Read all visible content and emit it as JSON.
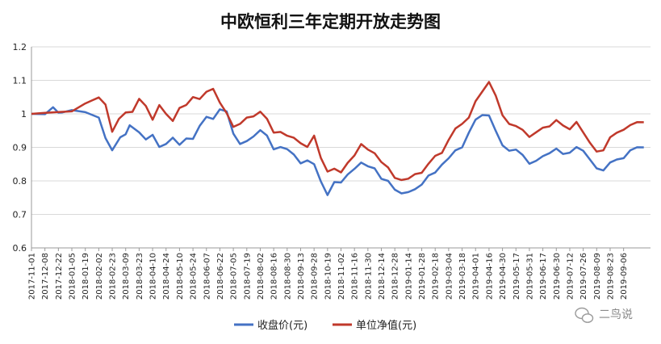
{
  "chart_data": {
    "type": "line",
    "title": "中欧恒利三年定期开放走势图",
    "xlabel": "",
    "ylabel": "",
    "ylim": [
      0.6,
      1.2
    ],
    "yticks": [
      "0.6",
      "0.7",
      "0.8",
      "0.9",
      "1",
      "1.1",
      "1.2"
    ],
    "grid": "horizontal",
    "legend_position": "bottom",
    "x_tick_labels": [
      "2017-11-01",
      "2017-12-08",
      "2017-12-22",
      "2018-01-05",
      "2018-01-19",
      "2018-02-02",
      "2018-02-23",
      "2018-03-09",
      "2018-03-23",
      "2018-04-10",
      "2018-04-24",
      "2018-05-10",
      "2018-05-24",
      "2018-06-07",
      "2018-06-22",
      "2018-07-05",
      "2018-07-19",
      "2018-08-02",
      "2018-08-16",
      "2018-08-30",
      "2018-09-13",
      "2018-09-28",
      "2018-10-19",
      "2018-11-02",
      "2018-11-16",
      "2018-11-30",
      "2018-12-14",
      "2018-12-28",
      "2019-01-14",
      "2019-01-28",
      "2019-02-18",
      "2019-03-04",
      "2019-03-18",
      "2019-04-01",
      "2019-04-16",
      "2019-04-30",
      "2019-05-17",
      "2019-05-31",
      "2019-06-17",
      "2019-06-30",
      "2019-07-12",
      "2019-07-26",
      "2019-08-09",
      "2019-08-23",
      "2019-09-06"
    ],
    "x_range": [
      0,
      46
    ],
    "series": [
      {
        "name": "收盘价(元)",
        "color": "#4472c4",
        "x": [
          0,
          1,
          1.6,
          2,
          2.3,
          3,
          4,
          5,
          5.5,
          6,
          6.6,
          7,
          7.3,
          8,
          8.5,
          9,
          9.5,
          10,
          10.5,
          11,
          11.5,
          12,
          12.5,
          13,
          13.5,
          14,
          14.5,
          15,
          15.5,
          16,
          16.5,
          17,
          17.5,
          18,
          18.5,
          19,
          19.5,
          20,
          20.5,
          21,
          21.5,
          22,
          22.5,
          23,
          23.5,
          24,
          24.5,
          25,
          25.5,
          26,
          26.5,
          27,
          27.5,
          28,
          28.5,
          29,
          29.5,
          30,
          30.5,
          31,
          31.5,
          32,
          32.5,
          33,
          33.5,
          34,
          34.5,
          35,
          35.5,
          36,
          36.5,
          37,
          37.5,
          38,
          38.5,
          39,
          39.5,
          40,
          40.5,
          41,
          41.5,
          42,
          42.5,
          43,
          43.5,
          44,
          44.5,
          45,
          45.5
        ],
        "values": [
          1.0,
          0.993,
          1.015,
          1.0,
          1.002,
          1.01,
          1.005,
          0.99,
          0.93,
          0.895,
          0.935,
          0.945,
          0.96,
          0.94,
          0.92,
          0.935,
          0.9,
          0.91,
          0.93,
          0.91,
          0.93,
          0.93,
          0.97,
          0.985,
          0.98,
          1.01,
          1.005,
          0.94,
          0.91,
          0.92,
          0.935,
          0.955,
          0.94,
          0.9,
          0.895,
          0.89,
          0.875,
          0.85,
          0.86,
          0.85,
          0.8,
          0.76,
          0.8,
          0.8,
          0.825,
          0.83,
          0.85,
          0.84,
          0.835,
          0.805,
          0.8,
          0.775,
          0.765,
          0.77,
          0.78,
          0.795,
          0.81,
          0.82,
          0.845,
          0.865,
          0.89,
          0.9,
          0.945,
          0.985,
          1.0,
          1.0,
          0.955,
          0.9,
          0.885,
          0.89,
          0.875,
          0.85,
          0.86,
          0.875,
          0.885,
          0.9,
          0.885,
          0.89,
          0.895,
          0.885,
          0.86,
          0.835,
          0.83,
          0.855,
          0.865,
          0.87,
          0.895,
          0.905,
          0.9
        ]
      },
      {
        "name": "单位净值(元)",
        "color": "#c0392b",
        "x": [
          0,
          1,
          2,
          3,
          4,
          4.5,
          5,
          5.5,
          6,
          6.5,
          7,
          7.5,
          8,
          8.5,
          9,
          9.5,
          10,
          10.5,
          11,
          11.5,
          12,
          12.5,
          13,
          13.5,
          14,
          14.5,
          15,
          15.5,
          16,
          16.5,
          17,
          17.5,
          18,
          18.5,
          19,
          19.5,
          20,
          20.5,
          21,
          21.5,
          22,
          22.5,
          23,
          23.5,
          24,
          24.5,
          25,
          25.5,
          26,
          26.5,
          27,
          27.5,
          28,
          28.5,
          29,
          29.5,
          30,
          30.5,
          31,
          31.5,
          32,
          32.5,
          33,
          33.5,
          34,
          34.5,
          35,
          35.5,
          36,
          36.5,
          37,
          37.5,
          38,
          38.5,
          39,
          39.5,
          40,
          40.5,
          41,
          41.5,
          42,
          42.5,
          43,
          43.5,
          44,
          44.5,
          45,
          45.5
        ],
        "values": [
          1.0,
          0.998,
          1.002,
          1.005,
          1.03,
          1.04,
          1.05,
          1.03,
          0.95,
          0.99,
          1.01,
          1.0,
          1.04,
          1.02,
          0.98,
          1.025,
          1.0,
          0.98,
          1.02,
          1.03,
          1.055,
          1.05,
          1.06,
          1.07,
          1.03,
          1.0,
          0.96,
          0.97,
          0.99,
          0.995,
          1.01,
          0.99,
          0.95,
          0.94,
          0.93,
          0.925,
          0.91,
          0.9,
          0.935,
          0.87,
          0.83,
          0.84,
          0.83,
          0.86,
          0.87,
          0.905,
          0.89,
          0.88,
          0.855,
          0.84,
          0.81,
          0.805,
          0.81,
          0.825,
          0.83,
          0.845,
          0.87,
          0.88,
          0.92,
          0.955,
          0.97,
          0.99,
          1.04,
          1.07,
          1.1,
          1.06,
          0.99,
          0.965,
          0.96,
          0.95,
          0.93,
          0.945,
          0.96,
          0.965,
          0.985,
          0.97,
          0.96,
          0.97,
          0.94,
          0.91,
          0.885,
          0.89,
          0.93,
          0.945,
          0.955,
          0.97,
          0.98,
          0.975
        ]
      }
    ]
  },
  "watermark": {
    "icon": "wechat-icon",
    "text": "二鸟说"
  }
}
